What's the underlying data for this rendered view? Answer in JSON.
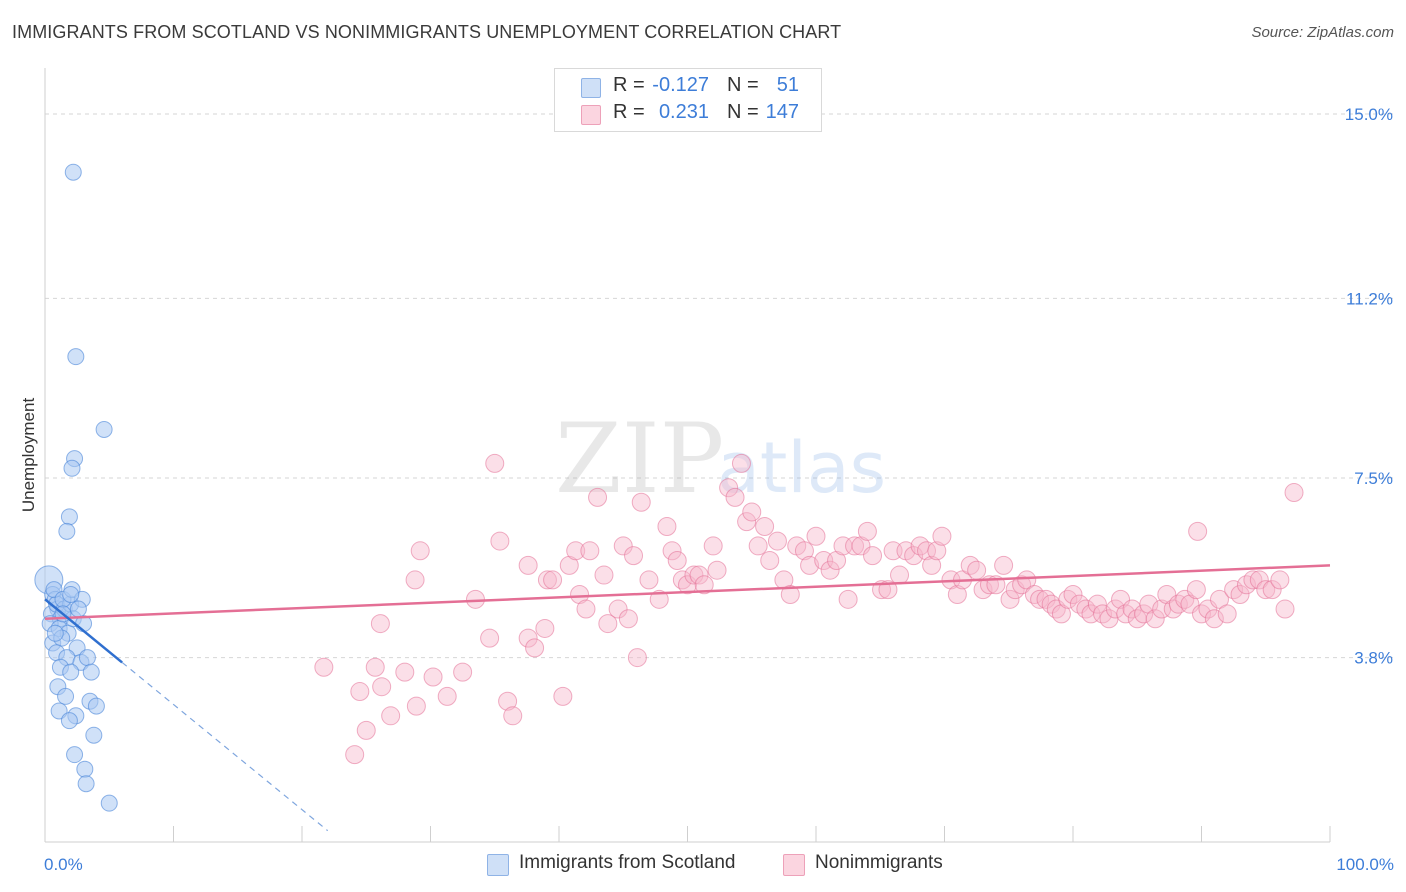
{
  "header": {
    "title": "IMMIGRANTS FROM SCOTLAND VS NONIMMIGRANTS UNEMPLOYMENT CORRELATION CHART",
    "source": "Source: ZipAtlas.com"
  },
  "watermark": {
    "zip": "ZIP",
    "atlas": "atlas"
  },
  "legend": {
    "rows": [
      {
        "r_label": "R =",
        "r_value": "-0.127",
        "n_label": "N =",
        "n_value": "51",
        "color": "#a9c8f2"
      },
      {
        "r_label": "R =",
        "r_value": "0.231",
        "n_label": "N =",
        "n_value": "147",
        "color": "#f6b9cc"
      }
    ]
  },
  "bottom_legend": {
    "items": [
      {
        "label": "Immigrants from Scotland",
        "color": "#a9c8f2"
      },
      {
        "label": "Nonimmigrants",
        "color": "#f6b9cc"
      }
    ]
  },
  "chart_data": {
    "type": "scatter",
    "title": "IMMIGRANTS FROM SCOTLAND VS NONIMMIGRANTS UNEMPLOYMENT CORRELATION CHART",
    "xlabel": "",
    "ylabel": "Unemployment",
    "xlim": [
      0,
      100
    ],
    "ylim": [
      0,
      15.7
    ],
    "x_tick_labels": [
      "0.0%",
      "100.0%"
    ],
    "y_ticks": [
      3.8,
      7.5,
      11.2,
      15.0
    ],
    "y_tick_labels": [
      "3.8%",
      "7.5%",
      "11.2%",
      "15.0%"
    ],
    "grid": true,
    "series": [
      {
        "name": "Immigrants from Scotland",
        "color": "#4a86d9",
        "fill": "#a9c8f2",
        "r": -0.127,
        "n": 51,
        "trend": {
          "x0": 0,
          "y0": 5.0,
          "x1": 6.0,
          "y1": 3.7,
          "dash_to_x": 22.0
        },
        "points": [
          [
            0.3,
            5.4
          ],
          [
            0.6,
            5.1
          ],
          [
            0.8,
            5.0
          ],
          [
            1.0,
            4.8
          ],
          [
            0.5,
            4.7
          ],
          [
            1.2,
            4.6
          ],
          [
            0.9,
            4.9
          ],
          [
            1.5,
            4.8
          ],
          [
            0.4,
            4.5
          ],
          [
            1.1,
            4.4
          ],
          [
            1.8,
            4.3
          ],
          [
            2.0,
            4.9
          ],
          [
            0.7,
            5.2
          ],
          [
            1.4,
            5.0
          ],
          [
            2.2,
            4.6
          ],
          [
            0.6,
            4.1
          ],
          [
            1.3,
            4.2
          ],
          [
            2.5,
            4.0
          ],
          [
            0.9,
            3.9
          ],
          [
            1.7,
            3.8
          ],
          [
            2.8,
            3.7
          ],
          [
            1.2,
            3.6
          ],
          [
            2.0,
            3.5
          ],
          [
            3.0,
            4.5
          ],
          [
            3.3,
            3.8
          ],
          [
            2.1,
            5.2
          ],
          [
            2.9,
            5.0
          ],
          [
            3.6,
            3.5
          ],
          [
            1.0,
            3.2
          ],
          [
            1.6,
            3.0
          ],
          [
            3.5,
            2.9
          ],
          [
            1.1,
            2.7
          ],
          [
            2.4,
            2.6
          ],
          [
            4.0,
            2.8
          ],
          [
            3.8,
            2.2
          ],
          [
            2.3,
            1.8
          ],
          [
            3.1,
            1.5
          ],
          [
            3.2,
            1.2
          ],
          [
            5.0,
            0.8
          ],
          [
            2.2,
            13.8
          ],
          [
            2.4,
            10.0
          ],
          [
            4.6,
            8.5
          ],
          [
            2.3,
            7.9
          ],
          [
            2.1,
            7.7
          ],
          [
            1.9,
            6.7
          ],
          [
            1.7,
            6.4
          ],
          [
            1.4,
            4.7
          ],
          [
            2.6,
            4.8
          ],
          [
            1.9,
            2.5
          ],
          [
            0.8,
            4.3
          ],
          [
            2.0,
            5.1
          ]
        ]
      },
      {
        "name": "Nonimmigrants",
        "color": "#e46f95",
        "fill": "#f6b9cc",
        "r": 0.231,
        "n": 147,
        "trend": {
          "x0": 0,
          "y0": 4.6,
          "x1": 100,
          "y1": 5.7
        },
        "points": [
          [
            21.7,
            3.6
          ],
          [
            24.1,
            1.8
          ],
          [
            24.5,
            3.1
          ],
          [
            25.0,
            2.3
          ],
          [
            25.7,
            3.6
          ],
          [
            26.1,
            4.5
          ],
          [
            26.2,
            3.2
          ],
          [
            26.9,
            2.6
          ],
          [
            28.0,
            3.5
          ],
          [
            28.8,
            5.4
          ],
          [
            28.9,
            2.8
          ],
          [
            29.2,
            6.0
          ],
          [
            30.2,
            3.4
          ],
          [
            31.3,
            3.0
          ],
          [
            32.5,
            3.5
          ],
          [
            33.5,
            5.0
          ],
          [
            34.6,
            4.2
          ],
          [
            35.0,
            7.8
          ],
          [
            35.4,
            6.2
          ],
          [
            36.0,
            2.9
          ],
          [
            36.4,
            2.6
          ],
          [
            37.6,
            4.2
          ],
          [
            37.6,
            5.7
          ],
          [
            38.1,
            4.0
          ],
          [
            38.9,
            4.4
          ],
          [
            39.1,
            5.4
          ],
          [
            39.5,
            5.4
          ],
          [
            40.3,
            3.0
          ],
          [
            40.8,
            5.7
          ],
          [
            41.3,
            6.0
          ],
          [
            41.6,
            5.1
          ],
          [
            42.1,
            4.8
          ],
          [
            42.4,
            6.0
          ],
          [
            43.0,
            7.1
          ],
          [
            43.5,
            5.5
          ],
          [
            43.8,
            4.5
          ],
          [
            44.6,
            4.8
          ],
          [
            45.0,
            6.1
          ],
          [
            45.4,
            4.6
          ],
          [
            45.8,
            5.9
          ],
          [
            46.1,
            3.8
          ],
          [
            46.4,
            7.0
          ],
          [
            47.0,
            5.4
          ],
          [
            47.8,
            5.0
          ],
          [
            48.4,
            6.5
          ],
          [
            48.8,
            6.0
          ],
          [
            49.2,
            5.8
          ],
          [
            49.6,
            5.4
          ],
          [
            50.0,
            5.3
          ],
          [
            50.5,
            5.5
          ],
          [
            50.9,
            5.5
          ],
          [
            51.3,
            5.3
          ],
          [
            52.0,
            6.1
          ],
          [
            52.3,
            5.6
          ],
          [
            53.2,
            7.3
          ],
          [
            53.7,
            7.1
          ],
          [
            54.2,
            7.8
          ],
          [
            54.6,
            6.6
          ],
          [
            55.0,
            6.8
          ],
          [
            55.5,
            6.1
          ],
          [
            56.0,
            6.5
          ],
          [
            56.4,
            5.8
          ],
          [
            57.0,
            6.2
          ],
          [
            57.5,
            5.4
          ],
          [
            58.0,
            5.1
          ],
          [
            58.5,
            6.1
          ],
          [
            59.1,
            6.0
          ],
          [
            59.5,
            5.7
          ],
          [
            60.0,
            6.3
          ],
          [
            60.6,
            5.8
          ],
          [
            61.1,
            5.6
          ],
          [
            61.6,
            5.8
          ],
          [
            62.1,
            6.1
          ],
          [
            62.5,
            5.0
          ],
          [
            63.0,
            6.1
          ],
          [
            63.5,
            6.1
          ],
          [
            64.0,
            6.4
          ],
          [
            64.4,
            5.9
          ],
          [
            65.1,
            5.2
          ],
          [
            65.6,
            5.2
          ],
          [
            66.0,
            6.0
          ],
          [
            66.5,
            5.5
          ],
          [
            67.0,
            6.0
          ],
          [
            67.6,
            5.9
          ],
          [
            68.1,
            6.1
          ],
          [
            68.6,
            6.0
          ],
          [
            69.0,
            5.7
          ],
          [
            69.4,
            6.0
          ],
          [
            69.8,
            6.3
          ],
          [
            70.5,
            5.4
          ],
          [
            71.0,
            5.1
          ],
          [
            71.4,
            5.4
          ],
          [
            72.0,
            5.7
          ],
          [
            72.5,
            5.6
          ],
          [
            73.0,
            5.2
          ],
          [
            73.5,
            5.3
          ],
          [
            74.0,
            5.3
          ],
          [
            74.6,
            5.7
          ],
          [
            75.1,
            5.0
          ],
          [
            75.5,
            5.2
          ],
          [
            76.0,
            5.3
          ],
          [
            76.4,
            5.4
          ],
          [
            77.0,
            5.1
          ],
          [
            77.4,
            5.0
          ],
          [
            77.9,
            5.0
          ],
          [
            78.3,
            4.9
          ],
          [
            78.7,
            4.8
          ],
          [
            79.1,
            4.7
          ],
          [
            79.6,
            5.0
          ],
          [
            80.0,
            5.1
          ],
          [
            80.5,
            4.9
          ],
          [
            81.0,
            4.8
          ],
          [
            81.4,
            4.7
          ],
          [
            81.9,
            4.9
          ],
          [
            82.3,
            4.7
          ],
          [
            82.8,
            4.6
          ],
          [
            83.3,
            4.8
          ],
          [
            83.7,
            5.0
          ],
          [
            84.1,
            4.7
          ],
          [
            84.6,
            4.8
          ],
          [
            85.0,
            4.6
          ],
          [
            85.5,
            4.7
          ],
          [
            85.9,
            4.9
          ],
          [
            86.4,
            4.6
          ],
          [
            86.9,
            4.8
          ],
          [
            87.3,
            5.1
          ],
          [
            87.8,
            4.8
          ],
          [
            88.2,
            4.9
          ],
          [
            88.7,
            5.0
          ],
          [
            89.1,
            4.9
          ],
          [
            89.6,
            5.2
          ],
          [
            90.0,
            4.7
          ],
          [
            90.5,
            4.8
          ],
          [
            91.0,
            4.6
          ],
          [
            91.4,
            5.0
          ],
          [
            92.0,
            4.7
          ],
          [
            92.5,
            5.2
          ],
          [
            93.0,
            5.1
          ],
          [
            93.5,
            5.3
          ],
          [
            94.0,
            5.4
          ],
          [
            94.5,
            5.4
          ],
          [
            95.0,
            5.2
          ],
          [
            95.5,
            5.2
          ],
          [
            96.1,
            5.4
          ],
          [
            96.5,
            4.8
          ],
          [
            97.2,
            7.2
          ],
          [
            89.7,
            6.4
          ]
        ]
      }
    ]
  }
}
